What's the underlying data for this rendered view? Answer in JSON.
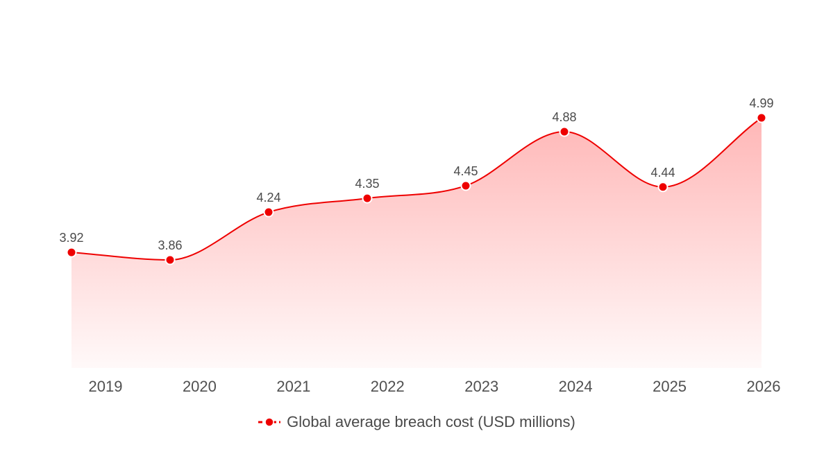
{
  "chart_data": {
    "type": "area",
    "title": "",
    "xlabel": "",
    "ylabel": "",
    "categories": [
      "2019",
      "2020",
      "2021",
      "2022",
      "2023",
      "2024",
      "2025",
      "2026"
    ],
    "series": [
      {
        "name": "Global average breach cost (USD millions)",
        "values": [
          3.92,
          3.86,
          4.24,
          4.35,
          4.45,
          4.88,
          4.44,
          4.99
        ],
        "labels": [
          "3.92",
          "3.86",
          "4.24",
          "4.35",
          "4.45",
          "4.88",
          "4.44",
          "4.99"
        ],
        "color": "#ee0000",
        "fill_color": "#ffb3b3"
      }
    ],
    "ylim": [
      3.0,
      5.0
    ],
    "smooth": true,
    "grid": false,
    "legend_position": "bottom-center"
  }
}
